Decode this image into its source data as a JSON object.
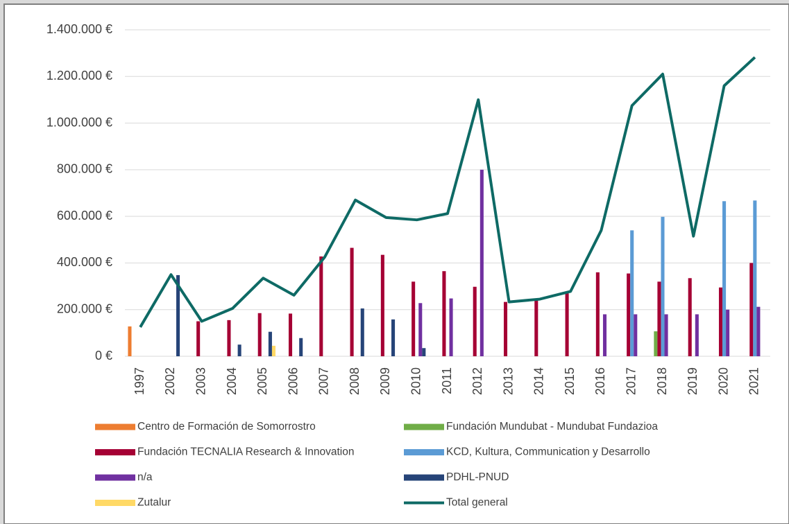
{
  "chart_data": {
    "type": "bar",
    "categories": [
      "1997",
      "2002",
      "2003",
      "2004",
      "2005",
      "2006",
      "2007",
      "2008",
      "2009",
      "2010",
      "2011",
      "2012",
      "2013",
      "2014",
      "2015",
      "2016",
      "2017",
      "2018",
      "2019",
      "2020",
      "2021"
    ],
    "series": [
      {
        "name": "Centro de Formación de Somorrostro",
        "color": "#ed7d31",
        "values": [
          128000,
          null,
          null,
          null,
          null,
          null,
          null,
          null,
          null,
          null,
          null,
          null,
          null,
          null,
          null,
          null,
          null,
          null,
          null,
          null,
          null
        ]
      },
      {
        "name": "Fundación Mundubat - Mundubat Fundazioa",
        "color": "#70ad47",
        "values": [
          null,
          null,
          null,
          null,
          null,
          null,
          null,
          null,
          null,
          null,
          null,
          null,
          null,
          null,
          null,
          null,
          null,
          107000,
          null,
          null,
          null
        ]
      },
      {
        "name": "Fundación TECNALIA Research & Innovation",
        "color": "#a50034",
        "values": [
          null,
          null,
          150000,
          155000,
          185000,
          183000,
          428000,
          465000,
          435000,
          320000,
          365000,
          298000,
          233000,
          245000,
          270000,
          360000,
          355000,
          320000,
          335000,
          295000,
          400000
        ]
      },
      {
        "name": "KCD, Kultura, Communication y Desarrollo",
        "color": "#5b9bd5",
        "values": [
          null,
          null,
          null,
          null,
          null,
          null,
          null,
          null,
          null,
          null,
          null,
          null,
          null,
          null,
          null,
          null,
          540000,
          598000,
          null,
          665000,
          668000
        ]
      },
      {
        "name": "n/a",
        "color": "#7030a0",
        "values": [
          null,
          null,
          null,
          null,
          null,
          null,
          null,
          null,
          null,
          228000,
          248000,
          800000,
          null,
          null,
          null,
          180000,
          180000,
          180000,
          180000,
          200000,
          212000
        ]
      },
      {
        "name": "PDHL-PNUD",
        "color": "#264478",
        "values": [
          null,
          348000,
          null,
          50000,
          105000,
          78000,
          null,
          205000,
          158000,
          35000,
          null,
          null,
          null,
          null,
          null,
          null,
          null,
          null,
          null,
          null,
          null
        ]
      },
      {
        "name": "Zutalur",
        "color": "#ffd966",
        "values": [
          null,
          null,
          null,
          null,
          45000,
          null,
          null,
          null,
          null,
          null,
          null,
          null,
          null,
          null,
          null,
          null,
          null,
          null,
          null,
          null,
          null
        ]
      },
      {
        "name": "Total general",
        "color": "#0e6a65",
        "type": "line",
        "values": [
          125000,
          350000,
          150000,
          205000,
          335000,
          262000,
          425000,
          670000,
          595000,
          585000,
          612000,
          1100000,
          233000,
          245000,
          278000,
          540000,
          1075000,
          1210000,
          515000,
          1160000,
          1282000
        ]
      }
    ],
    "ylim": [
      0,
      1400000
    ],
    "yticks": [
      {
        "value": 0,
        "label": "0 €"
      },
      {
        "value": 200000,
        "label": "200.000 €"
      },
      {
        "value": 400000,
        "label": "400.000 €"
      },
      {
        "value": 600000,
        "label": "600.000 €"
      },
      {
        "value": 800000,
        "label": "800.000 €"
      },
      {
        "value": 1000000,
        "label": "1.000.000 €"
      },
      {
        "value": 1200000,
        "label": "1.200.000 €"
      },
      {
        "value": 1400000,
        "label": "1.400.000 €"
      }
    ],
    "grid": true,
    "legend": "bottom"
  }
}
